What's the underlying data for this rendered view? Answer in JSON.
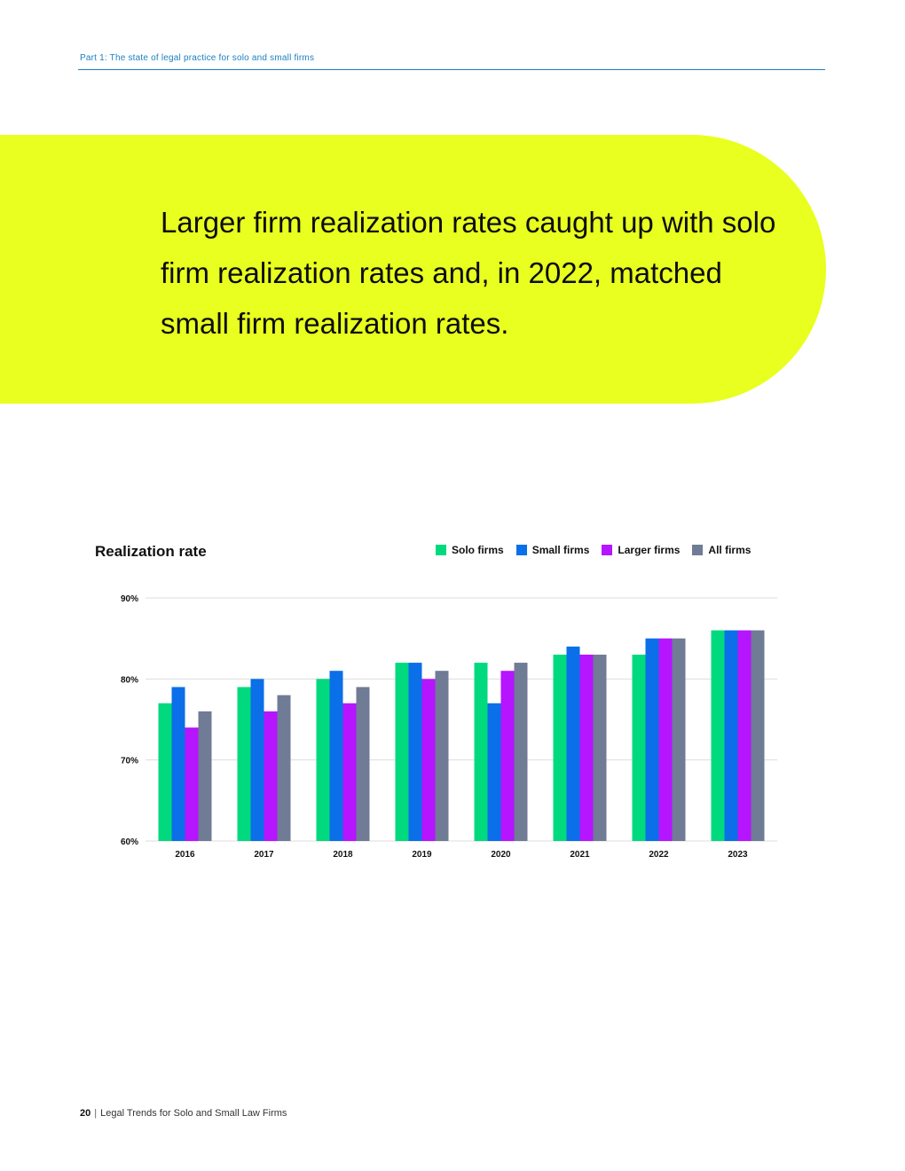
{
  "header": {
    "section_label": "Part 1: The state of legal practice for solo and small firms"
  },
  "banner": {
    "heading": "Larger firm realization rates caught up with solo firm realization rates and, in 2022, matched small firm realization rates."
  },
  "colors": {
    "banner_bg": "#e8ff1f",
    "header_accent": "#1a7fc2"
  },
  "chart_data": {
    "type": "bar",
    "title": "Realization rate",
    "xlabel": "",
    "ylabel": "",
    "categories": [
      "2016",
      "2017",
      "2018",
      "2019",
      "2020",
      "2021",
      "2022",
      "2023"
    ],
    "ylim": [
      60,
      90
    ],
    "yticks": [
      60,
      70,
      80,
      90
    ],
    "ytick_labels": [
      "60%",
      "70%",
      "80%",
      "90%"
    ],
    "grid": true,
    "legend_position": "top-right",
    "series": [
      {
        "name": "Solo firms",
        "color": "#00d97e",
        "values": [
          77,
          79,
          80,
          82,
          82,
          83,
          83,
          86
        ]
      },
      {
        "name": "Small firms",
        "color": "#0a6fe8",
        "values": [
          79,
          80,
          81,
          82,
          77,
          84,
          85,
          86
        ]
      },
      {
        "name": "Larger firms",
        "color": "#b515ff",
        "values": [
          74,
          76,
          77,
          80,
          81,
          83,
          85,
          86
        ]
      },
      {
        "name": "All firms",
        "color": "#707b95",
        "values": [
          76,
          78,
          79,
          81,
          82,
          83,
          85,
          86
        ]
      }
    ]
  },
  "footer": {
    "page_number": "20",
    "separator": "|",
    "doc_title": "Legal Trends for Solo and Small Law Firms"
  }
}
